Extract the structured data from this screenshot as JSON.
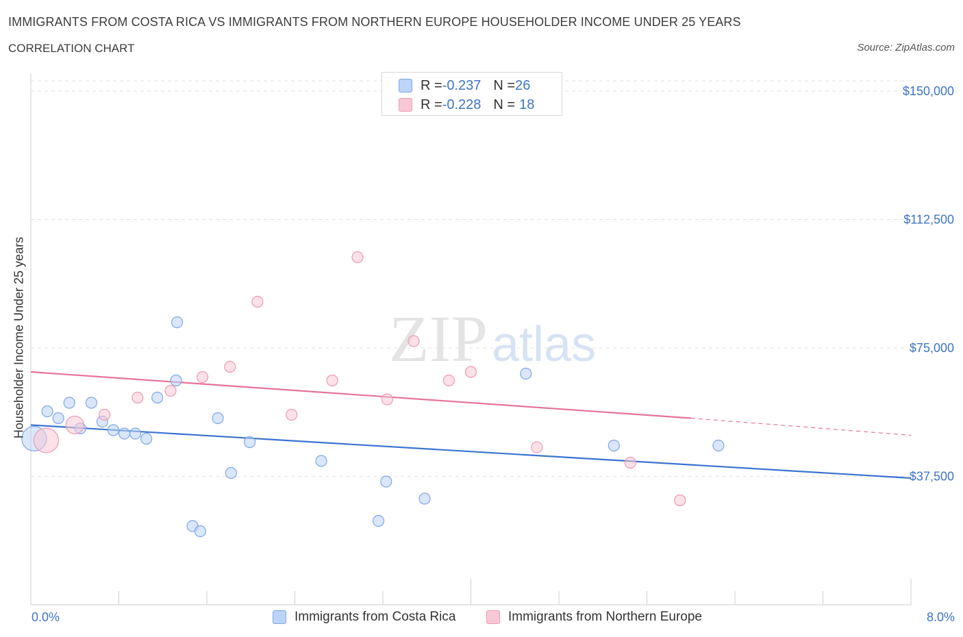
{
  "title": "IMMIGRANTS FROM COSTA RICA VS IMMIGRANTS FROM NORTHERN EUROPE HOUSEHOLDER INCOME UNDER 25 YEARS",
  "subtitle": "CORRELATION CHART",
  "source": "Source: ZipAtlas.com",
  "watermark": {
    "zip": "ZIP",
    "atlas": "atlas"
  },
  "colors": {
    "blue": "#3d74c6",
    "blue_fill": "#bcd4f7",
    "blue_line": "#3a73cf",
    "pink": "#e57399",
    "pink_fill": "#f9c8d6",
    "axis_text": "#3d74c6"
  },
  "legend": {
    "rows": [
      {
        "r_label": "R = ",
        "r_value": "-0.237",
        "n_label": "N = ",
        "n_value": "26"
      },
      {
        "r_label": "R = ",
        "r_value": "-0.228",
        "n_label": "N = ",
        "n_value": "18"
      }
    ]
  },
  "bottom_legend": {
    "series1": "Immigrants from Costa Rica",
    "series2": "Immigrants from Northern Europe"
  },
  "chart_data": {
    "type": "scatter",
    "title": "IMMIGRANTS FROM COSTA RICA VS IMMIGRANTS FROM NORTHERN EUROPE HOUSEHOLDER INCOME UNDER 25 YEARS",
    "xlabel": "",
    "ylabel": "Householder Income Under 25 years",
    "xlim": [
      0,
      8
    ],
    "ylim": [
      0,
      150000
    ],
    "x_tick_labels": [
      "0.0%",
      "8.0%"
    ],
    "y_ticks": [
      37500,
      75000,
      112500,
      150000
    ],
    "y_tick_labels": [
      "$37,500",
      "$75,000",
      "$112,500",
      "$150,000"
    ],
    "grid": true,
    "series": [
      {
        "name": "Immigrants from Costa Rica",
        "color": "#3d74c6",
        "points": [
          {
            "x": 0.03,
            "y": 48500,
            "big": true
          },
          {
            "x": 0.15,
            "y": 56500
          },
          {
            "x": 0.25,
            "y": 54500
          },
          {
            "x": 0.35,
            "y": 59000
          },
          {
            "x": 0.45,
            "y": 51500
          },
          {
            "x": 0.55,
            "y": 59000
          },
          {
            "x": 0.65,
            "y": 53500
          },
          {
            "x": 0.75,
            "y": 51000
          },
          {
            "x": 0.85,
            "y": 50000
          },
          {
            "x": 0.95,
            "y": 50000
          },
          {
            "x": 1.05,
            "y": 48500
          },
          {
            "x": 1.15,
            "y": 60500
          },
          {
            "x": 1.32,
            "y": 65500
          },
          {
            "x": 1.33,
            "y": 82500
          },
          {
            "x": 1.47,
            "y": 23000
          },
          {
            "x": 1.54,
            "y": 21500
          },
          {
            "x": 1.7,
            "y": 54500
          },
          {
            "x": 1.82,
            "y": 38500
          },
          {
            "x": 1.99,
            "y": 47500
          },
          {
            "x": 2.64,
            "y": 42000
          },
          {
            "x": 3.16,
            "y": 24500
          },
          {
            "x": 3.23,
            "y": 36000
          },
          {
            "x": 3.58,
            "y": 31000
          },
          {
            "x": 4.5,
            "y": 67500
          },
          {
            "x": 5.3,
            "y": 46500
          },
          {
            "x": 6.25,
            "y": 46500
          }
        ],
        "trend": {
          "x0": 0.0,
          "y0": 52500,
          "x1": 8.0,
          "y1": 37000
        }
      },
      {
        "name": "Immigrants from Northern Europe",
        "color": "#e57399",
        "points": [
          {
            "x": 0.14,
            "y": 48000,
            "big": true
          },
          {
            "x": 0.4,
            "y": 52500,
            "mid": true
          },
          {
            "x": 0.67,
            "y": 55500
          },
          {
            "x": 0.97,
            "y": 60500
          },
          {
            "x": 1.27,
            "y": 62500
          },
          {
            "x": 1.56,
            "y": 66500
          },
          {
            "x": 1.81,
            "y": 69500
          },
          {
            "x": 2.06,
            "y": 88500
          },
          {
            "x": 2.37,
            "y": 55500
          },
          {
            "x": 2.74,
            "y": 65500
          },
          {
            "x": 2.97,
            "y": 101500
          },
          {
            "x": 3.24,
            "y": 60000
          },
          {
            "x": 3.48,
            "y": 77000
          },
          {
            "x": 3.8,
            "y": 65500
          },
          {
            "x": 4.0,
            "y": 68000
          },
          {
            "x": 4.6,
            "y": 46000
          },
          {
            "x": 5.45,
            "y": 41500
          },
          {
            "x": 5.9,
            "y": 30500
          }
        ],
        "trend": {
          "x0": 0.0,
          "y0": 68000,
          "x1": 6.0,
          "y1": 54500,
          "dash_to_x": 8.0,
          "dash_to_y": 49500
        }
      }
    ]
  }
}
